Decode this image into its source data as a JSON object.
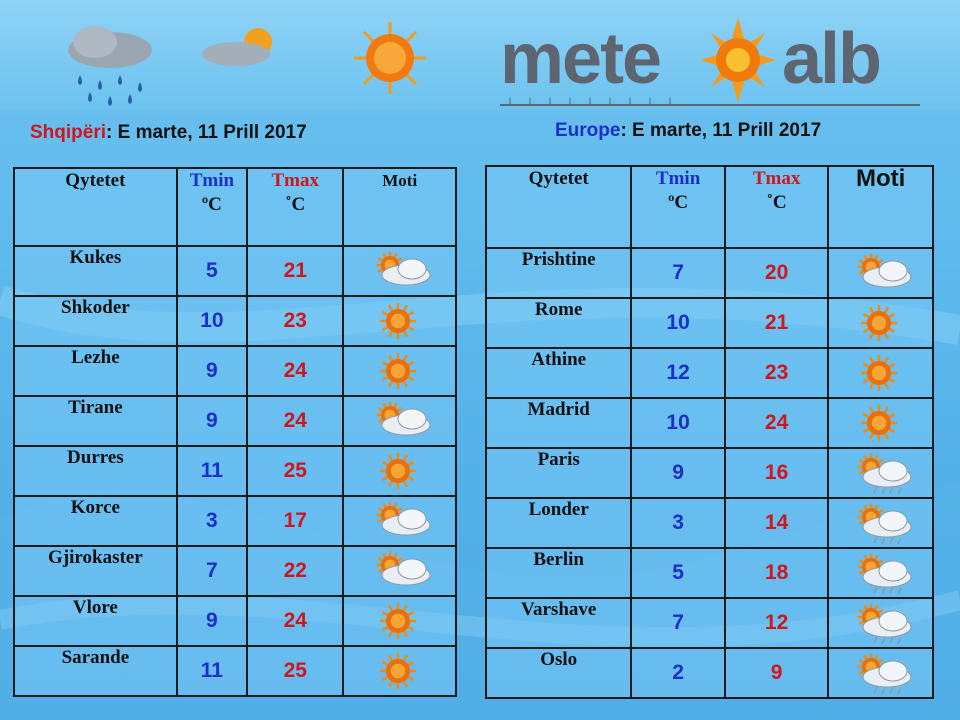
{
  "logo": {
    "part1": "mete",
    "part2": "alb"
  },
  "albania": {
    "country": "Shqipëri",
    "date": ": E marte, 11 Prill 2017",
    "headers": {
      "city": "Qytetet",
      "tmin": "Tmin",
      "tmin_unit": "ºC",
      "tmax": "Tmax",
      "tmax_unit": "˚C",
      "weather": "Moti"
    },
    "rows": [
      {
        "city": "Kukes",
        "tmin": "5",
        "tmax": "21",
        "icon": "sun-cloud-icon"
      },
      {
        "city": "Shkoder",
        "tmin": "10",
        "tmax": "23",
        "icon": "sun-icon"
      },
      {
        "city": "Lezhe",
        "tmin": "9",
        "tmax": "24",
        "icon": "sun-icon"
      },
      {
        "city": "Tirane",
        "tmin": "9",
        "tmax": "24",
        "icon": "sun-cloud-icon"
      },
      {
        "city": "Durres",
        "tmin": "11",
        "tmax": "25",
        "icon": "sun-icon"
      },
      {
        "city": "Korce",
        "tmin": "3",
        "tmax": "17",
        "icon": "sun-cloud-icon"
      },
      {
        "city": "Gjirokaster",
        "tmin": "7",
        "tmax": "22",
        "icon": "sun-cloud-icon"
      },
      {
        "city": "Vlore",
        "tmin": "9",
        "tmax": "24",
        "icon": "sun-icon"
      },
      {
        "city": "Sarande",
        "tmin": "11",
        "tmax": "25",
        "icon": "sun-icon"
      }
    ]
  },
  "europe": {
    "country": "Europe",
    "date": ": E marte, 11 Prill 2017",
    "headers": {
      "city": "Qytetet",
      "tmin": "Tmin",
      "tmin_unit": "ºC",
      "tmax": "Tmax",
      "tmax_unit": "˚C",
      "weather": "Moti"
    },
    "rows": [
      {
        "city": "Prishtine",
        "tmin": "7",
        "tmax": "20",
        "icon": "sun-cloud-icon"
      },
      {
        "city": "Rome",
        "tmin": "10",
        "tmax": "21",
        "icon": "sun-icon"
      },
      {
        "city": "Athine",
        "tmin": "12",
        "tmax": "23",
        "icon": "sun-icon"
      },
      {
        "city": "Madrid",
        "tmin": "10",
        "tmax": "24",
        "icon": "sun-icon"
      },
      {
        "city": "Paris",
        "tmin": "9",
        "tmax": "16",
        "icon": "sun-cloud-rain-icon"
      },
      {
        "city": "Londer",
        "tmin": "3",
        "tmax": "14",
        "icon": "sun-cloud-rain-icon"
      },
      {
        "city": "Berlin",
        "tmin": "5",
        "tmax": "18",
        "icon": "sun-cloud-rain-icon"
      },
      {
        "city": "Varshave",
        "tmin": "7",
        "tmax": "12",
        "icon": "sun-cloud-rain-icon"
      },
      {
        "city": "Oslo",
        "tmin": "2",
        "tmax": "9",
        "icon": "sun-cloud-rain-icon"
      }
    ]
  },
  "colors": {
    "tmin": "#1c2fc8",
    "tmax": "#d0151c",
    "logo_gray": "#5d6670",
    "sun": "#f28a10"
  }
}
